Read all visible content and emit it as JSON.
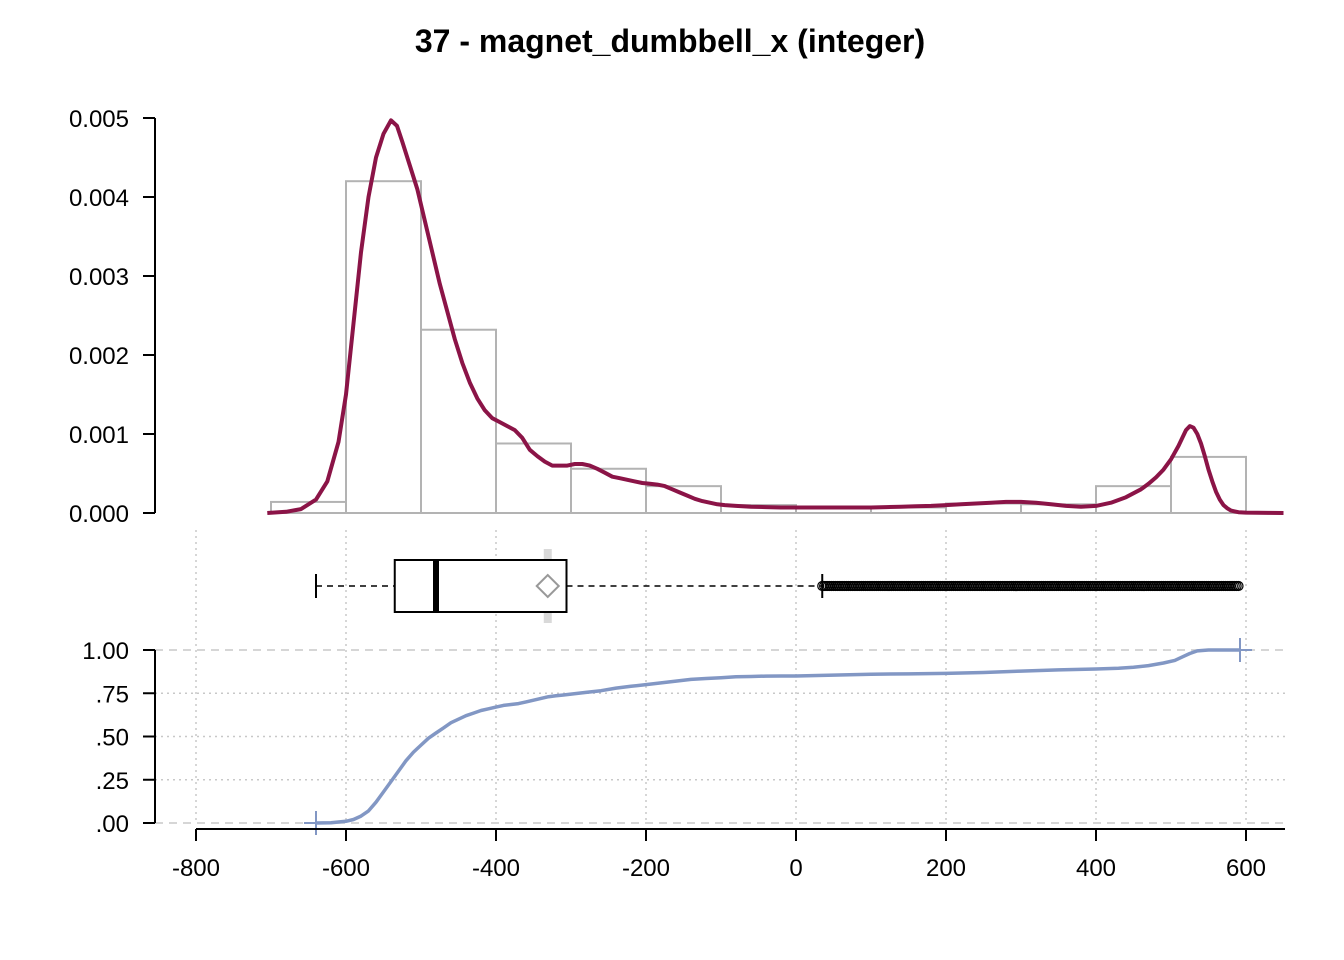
{
  "chart_data": [
    {
      "type": "histogram",
      "title": "37 - magnet_dumbbell_x (integer)",
      "ylim": [
        0,
        0.005
      ],
      "y_ticks": [
        "0.000",
        "0.001",
        "0.002",
        "0.003",
        "0.004",
        "0.005"
      ],
      "y_tick_values": [
        0,
        0.001,
        0.002,
        0.003,
        0.004,
        0.005
      ],
      "bins": [
        {
          "x0": -700,
          "x1": -600,
          "density": 0.00014
        },
        {
          "x0": -600,
          "x1": -500,
          "density": 0.0042
        },
        {
          "x0": -500,
          "x1": -400,
          "density": 0.00232
        },
        {
          "x0": -400,
          "x1": -300,
          "density": 0.00088
        },
        {
          "x0": -300,
          "x1": -200,
          "density": 0.00056
        },
        {
          "x0": -200,
          "x1": -100,
          "density": 0.00034
        },
        {
          "x0": -100,
          "x1": 0,
          "density": 0.0001
        },
        {
          "x0": 0,
          "x1": 100,
          "density": 7e-05
        },
        {
          "x0": 100,
          "x1": 200,
          "density": 7e-05
        },
        {
          "x0": 200,
          "x1": 300,
          "density": 0.00012
        },
        {
          "x0": 300,
          "x1": 400,
          "density": 0.00011
        },
        {
          "x0": 400,
          "x1": 500,
          "density": 0.00034
        },
        {
          "x0": 500,
          "x1": 600,
          "density": 0.00071
        }
      ],
      "density_curve": {
        "x": [
          -705,
          -680,
          -660,
          -640,
          -625,
          -610,
          -600,
          -590,
          -580,
          -570,
          -560,
          -550,
          -540,
          -532,
          -525,
          -515,
          -505,
          -495,
          -485,
          -475,
          -465,
          -455,
          -445,
          -435,
          -425,
          -415,
          -405,
          -395,
          -385,
          -375,
          -365,
          -355,
          -345,
          -335,
          -325,
          -315,
          -305,
          -295,
          -285,
          -275,
          -265,
          -255,
          -245,
          -235,
          -225,
          -215,
          -205,
          -195,
          -185,
          -175,
          -165,
          -155,
          -145,
          -135,
          -125,
          -115,
          -105,
          -95,
          -80,
          -60,
          -40,
          -20,
          0,
          20,
          40,
          60,
          80,
          100,
          120,
          140,
          160,
          180,
          200,
          220,
          240,
          260,
          280,
          300,
          320,
          340,
          360,
          380,
          400,
          420,
          440,
          460,
          470,
          480,
          490,
          500,
          510,
          515,
          520,
          525,
          530,
          535,
          540,
          545,
          550,
          555,
          560,
          565,
          570,
          575,
          580,
          585,
          590,
          600,
          615,
          630,
          650
        ],
        "y": [
          0,
          1.5e-05,
          5e-05,
          0.00017,
          0.0004,
          0.0009,
          0.0015,
          0.0024,
          0.0033,
          0.004,
          0.0045,
          0.0048,
          0.00497,
          0.0049,
          0.0047,
          0.0044,
          0.0041,
          0.0037,
          0.0033,
          0.0029,
          0.00255,
          0.0022,
          0.0019,
          0.00165,
          0.00145,
          0.0013,
          0.0012,
          0.00115,
          0.0011,
          0.00105,
          0.00095,
          0.0008,
          0.00072,
          0.00065,
          0.0006,
          0.0006,
          0.0006,
          0.00062,
          0.00062,
          0.0006,
          0.00056,
          0.00051,
          0.00046,
          0.00044,
          0.00042,
          0.0004,
          0.00038,
          0.00037,
          0.00036,
          0.00034,
          0.0003,
          0.00026,
          0.00022,
          0.00018,
          0.00015,
          0.00013,
          0.00011,
          0.0001,
          9e-05,
          8e-05,
          7.5e-05,
          7e-05,
          7e-05,
          7e-05,
          7e-05,
          7e-05,
          7e-05,
          7e-05,
          7.5e-05,
          8e-05,
          8.5e-05,
          9e-05,
          0.0001,
          0.00011,
          0.00012,
          0.00013,
          0.00014,
          0.00014,
          0.00013,
          0.00011,
          9e-05,
          8e-05,
          9e-05,
          0.00013,
          0.0002,
          0.0003,
          0.00037,
          0.00045,
          0.00055,
          0.00068,
          0.00085,
          0.00095,
          0.00105,
          0.0011,
          0.00108,
          0.001,
          0.00088,
          0.00072,
          0.00055,
          0.0004,
          0.00027,
          0.00017,
          0.0001,
          6e-05,
          3e-05,
          2e-05,
          1e-05,
          5e-06,
          2e-06,
          1e-06,
          0
        ]
      },
      "colors": {
        "bars": "#b3b3b3",
        "density": "#8b1447"
      }
    },
    {
      "type": "boxplot",
      "whisker_low": -640,
      "q1": -535,
      "median": -480,
      "q3": -306,
      "whisker_high": 35,
      "mean": -331,
      "outliers_range": [
        35,
        592
      ],
      "colors": {
        "box": "#000000",
        "mean_marker": "#999999",
        "mean_ci": "#d9d9d9"
      }
    },
    {
      "type": "line",
      "name": "ecdf",
      "ylim": [
        0,
        1
      ],
      "y_ticks": [
        ".00",
        ".25",
        ".50",
        ".75",
        "1.00"
      ],
      "y_tick_values": [
        0,
        0.25,
        0.5,
        0.75,
        1
      ],
      "x_ticks": [
        "-800",
        "-600",
        "-400",
        "-200",
        "0",
        "200",
        "400",
        "600"
      ],
      "x_tick_values": [
        -800,
        -600,
        -400,
        -200,
        0,
        200,
        400,
        600
      ],
      "xlim": [
        -800,
        650
      ],
      "x": [
        -640,
        -620,
        -600,
        -590,
        -580,
        -570,
        -560,
        -550,
        -540,
        -530,
        -520,
        -510,
        -500,
        -490,
        -480,
        -470,
        -460,
        -450,
        -440,
        -430,
        -420,
        -410,
        -400,
        -390,
        -380,
        -370,
        -360,
        -350,
        -340,
        -330,
        -320,
        -310,
        -300,
        -280,
        -260,
        -240,
        -220,
        -200,
        -180,
        -160,
        -140,
        -120,
        -100,
        -80,
        -60,
        -40,
        -20,
        0,
        50,
        100,
        150,
        200,
        250,
        300,
        350,
        400,
        430,
        450,
        470,
        490,
        505,
        515,
        525,
        535,
        550,
        570,
        592
      ],
      "y": [
        0,
        0.002,
        0.01,
        0.02,
        0.04,
        0.07,
        0.12,
        0.18,
        0.24,
        0.3,
        0.36,
        0.41,
        0.45,
        0.49,
        0.52,
        0.55,
        0.58,
        0.6,
        0.62,
        0.635,
        0.65,
        0.66,
        0.67,
        0.68,
        0.685,
        0.69,
        0.7,
        0.71,
        0.72,
        0.73,
        0.735,
        0.74,
        0.745,
        0.755,
        0.765,
        0.78,
        0.79,
        0.8,
        0.81,
        0.82,
        0.83,
        0.835,
        0.84,
        0.845,
        0.847,
        0.849,
        0.85,
        0.85,
        0.855,
        0.86,
        0.862,
        0.865,
        0.87,
        0.878,
        0.885,
        0.89,
        0.895,
        0.9,
        0.91,
        0.925,
        0.94,
        0.96,
        0.98,
        0.995,
        1.0,
        1.0,
        1.0
      ],
      "colors": {
        "line": "#8297c4",
        "grid": "#c8c8c8"
      }
    }
  ]
}
